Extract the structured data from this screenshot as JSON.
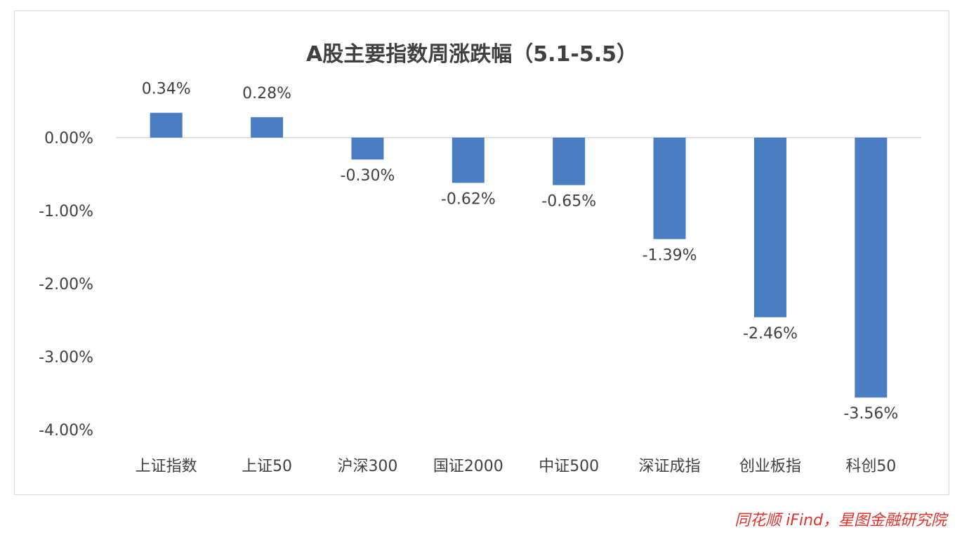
{
  "chart_data": {
    "type": "bar",
    "title": "A股主要指数周涨跌幅（5.1-5.5）",
    "categories": [
      "上证指数",
      "上证50",
      "沪深300",
      "国证2000",
      "中证500",
      "深证成指",
      "创业板指",
      "科创50"
    ],
    "values": [
      0.34,
      0.28,
      -0.3,
      -0.62,
      -0.65,
      -1.39,
      -2.46,
      -3.56
    ],
    "data_labels": [
      "0.34%",
      "0.28%",
      "-0.30%",
      "-0.62%",
      "-0.65%",
      "-1.39%",
      "-2.46%",
      "-3.56%"
    ],
    "y_ticks": [
      0,
      -1,
      -2,
      -3,
      -4
    ],
    "y_tick_labels": [
      "0.00%",
      "-1.00%",
      "-2.00%",
      "-3.00%",
      "-4.00%"
    ],
    "ylim": [
      -4.0,
      0.5
    ],
    "grid": false,
    "legend": "none",
    "xlabel": "",
    "ylabel": "",
    "bar_color": "#4a7dc1",
    "axis_color": "#d9d9d9"
  },
  "source_note": "同花顺 iFind，星图金融研究院",
  "source_color": "#e0312b"
}
